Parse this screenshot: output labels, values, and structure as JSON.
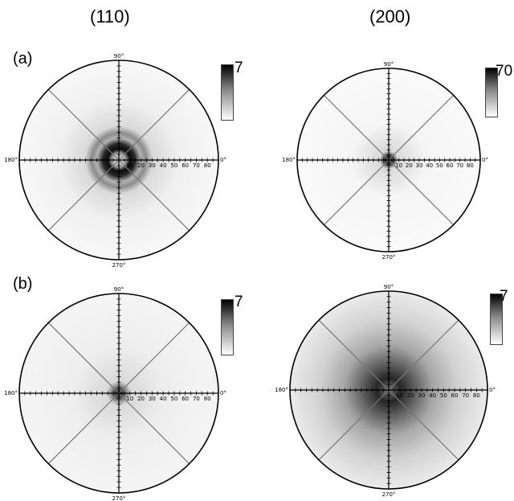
{
  "columns": [
    "(110)",
    "(200)"
  ],
  "rows": [
    "(a)",
    "(b)"
  ],
  "colorbar_max": {
    "a110": "7",
    "a200": "70",
    "b110": "7",
    "b200": "7"
  },
  "angle_labels": [
    "90°",
    "180°",
    "0°",
    "270°"
  ],
  "radial_tick_labels": [
    "10",
    "20",
    "30",
    "40",
    "50",
    "60",
    "70",
    "80"
  ],
  "colors": {
    "outline": "#000000",
    "diagonal": "#777777",
    "intensity": "#000000"
  }
}
